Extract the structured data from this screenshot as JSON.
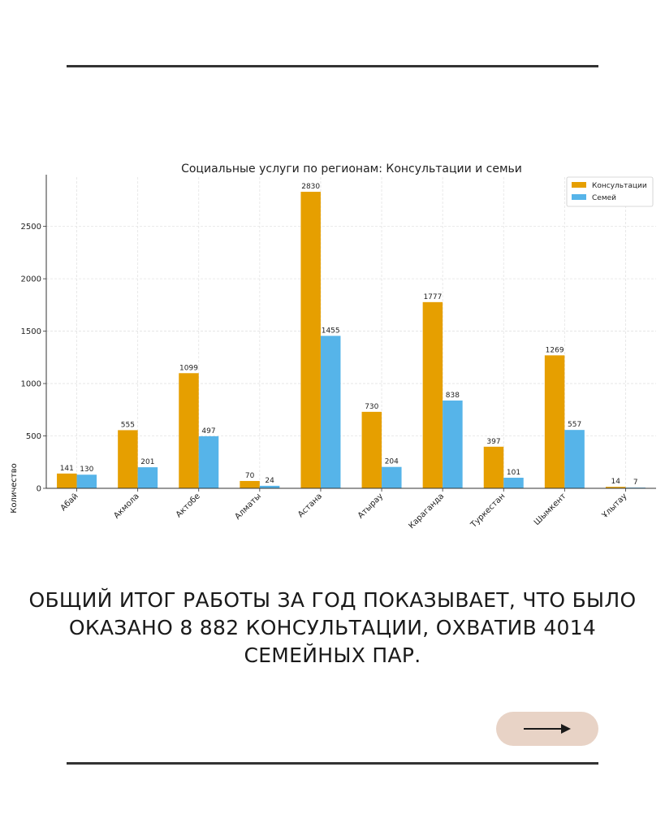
{
  "chart_data": {
    "type": "bar",
    "title": "Социальные услуги по регионам: Консультации и семьи",
    "xlabel": "",
    "ylabel": "Количество",
    "categories": [
      "Абай",
      "Акмола",
      "Актобе",
      "Алматы",
      "Астана",
      "Атырау",
      "Караганда",
      "Туркестан",
      "Шымкент",
      "Ұлытау"
    ],
    "series": [
      {
        "name": "Консультации",
        "color": "#e69f00",
        "values": [
          141,
          555,
          1099,
          70,
          2830,
          730,
          1777,
          397,
          1269,
          14
        ]
      },
      {
        "name": "Семей",
        "color": "#56b4e9",
        "values": [
          130,
          201,
          497,
          24,
          1455,
          204,
          838,
          101,
          557,
          7
        ]
      }
    ],
    "yticks": [
      0,
      500,
      1000,
      1500,
      2000,
      2500
    ],
    "ylim": [
      0,
      2970
    ],
    "grid": true,
    "legend_position": "top-right",
    "data_labels": true
  },
  "caption": {
    "lines": [
      "ОБЩИЙ ИТОГ РАБОТЫ ЗА ГОД ПОКАЗЫВАЕТ, ЧТО БЫЛО",
      "ОКАЗАНО 8 882 КОНСУЛЬТАЦИИ, ОХВАТИВ 4014",
      "СЕМЕЙНЫХ ПАР."
    ]
  },
  "next_button": {
    "icon": "arrow-right-icon",
    "color": "#e8d3c6"
  }
}
